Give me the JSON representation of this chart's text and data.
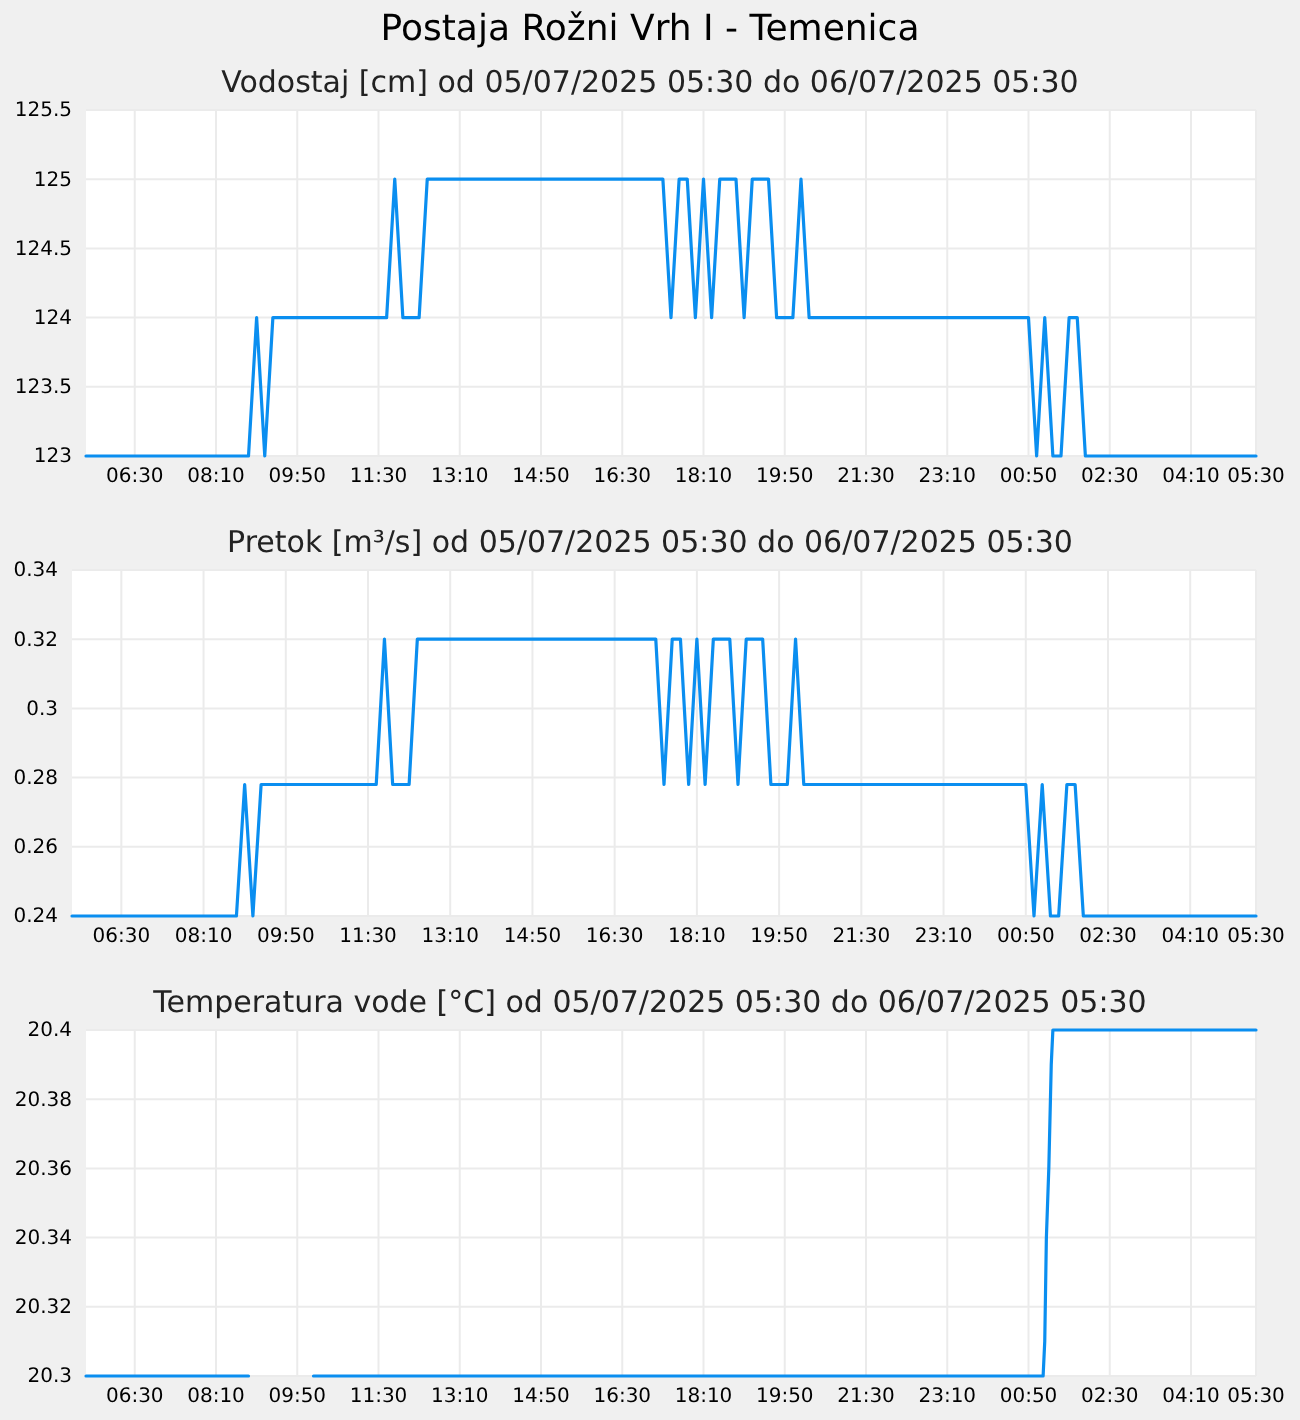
{
  "chart_data": [
    {
      "type": "line",
      "title": "Postaja Rožni Vrh I - Temenica",
      "subtitle": "Vodostaj [cm] od 05/07/2025 05:30 do 06/07/2025 05:30",
      "x": [
        "2025-07-05T05:30",
        "2025-07-05T08:50",
        "2025-07-05T09:00",
        "2025-07-05T09:10",
        "2025-07-05T09:20",
        "2025-07-05T11:40",
        "2025-07-05T11:50",
        "2025-07-05T12:00",
        "2025-07-05T12:20",
        "2025-07-05T12:30",
        "2025-07-05T17:20",
        "2025-07-05T17:30",
        "2025-07-05T17:40",
        "2025-07-05T17:50",
        "2025-07-05T18:00",
        "2025-07-05T18:10",
        "2025-07-05T18:20",
        "2025-07-05T18:30",
        "2025-07-05T18:50",
        "2025-07-05T19:00",
        "2025-07-05T19:10",
        "2025-07-05T19:30",
        "2025-07-05T19:40",
        "2025-07-05T20:00",
        "2025-07-05T20:10",
        "2025-07-05T20:20",
        "2025-07-06T00:50",
        "2025-07-06T01:00",
        "2025-07-06T01:10",
        "2025-07-06T01:20",
        "2025-07-06T01:30",
        "2025-07-06T01:40",
        "2025-07-06T01:50",
        "2025-07-06T02:00",
        "2025-07-06T05:30"
      ],
      "series": [
        {
          "color": "#0a8ef0",
          "values": [
            123,
            123,
            124,
            123,
            124,
            124,
            125,
            124,
            124,
            125,
            125,
            124,
            125,
            125,
            124,
            125,
            124,
            125,
            125,
            124,
            125,
            125,
            124,
            124,
            125,
            124,
            124,
            123,
            124,
            123,
            123,
            124,
            124,
            123,
            123
          ]
        }
      ],
      "xlim": [
        "2025-07-05T05:30",
        "2025-07-06T05:30"
      ],
      "xticks": [
        {
          "value": "2025-07-05T06:30",
          "label": "06:30"
        },
        {
          "value": "2025-07-05T08:10",
          "label": "08:10"
        },
        {
          "value": "2025-07-05T09:50",
          "label": "09:50"
        },
        {
          "value": "2025-07-05T11:30",
          "label": "11:30"
        },
        {
          "value": "2025-07-05T13:10",
          "label": "13:10"
        },
        {
          "value": "2025-07-05T14:50",
          "label": "14:50"
        },
        {
          "value": "2025-07-05T16:30",
          "label": "16:30"
        },
        {
          "value": "2025-07-05T18:10",
          "label": "18:10"
        },
        {
          "value": "2025-07-05T19:50",
          "label": "19:50"
        },
        {
          "value": "2025-07-05T21:30",
          "label": "21:30"
        },
        {
          "value": "2025-07-05T23:10",
          "label": "23:10"
        },
        {
          "value": "2025-07-06T00:50",
          "label": "00:50"
        },
        {
          "value": "2025-07-06T02:30",
          "label": "02:30"
        },
        {
          "value": "2025-07-06T04:10",
          "label": "04:10"
        },
        {
          "value": "2025-07-06T05:30",
          "label": "05:30"
        }
      ],
      "ylim": [
        123,
        125.5
      ],
      "yticks": [
        123,
        123.5,
        124,
        124.5,
        125,
        125.5
      ],
      "grid": true
    },
    {
      "type": "line",
      "title": "Pretok [m³/s] od 05/07/2025 05:30 do 06/07/2025 05:30",
      "x": [
        "2025-07-05T05:30",
        "2025-07-05T08:50",
        "2025-07-05T09:00",
        "2025-07-05T09:10",
        "2025-07-05T09:20",
        "2025-07-05T11:40",
        "2025-07-05T11:50",
        "2025-07-05T12:00",
        "2025-07-05T12:20",
        "2025-07-05T12:30",
        "2025-07-05T17:20",
        "2025-07-05T17:30",
        "2025-07-05T17:40",
        "2025-07-05T17:50",
        "2025-07-05T18:00",
        "2025-07-05T18:10",
        "2025-07-05T18:20",
        "2025-07-05T18:30",
        "2025-07-05T18:50",
        "2025-07-05T19:00",
        "2025-07-05T19:10",
        "2025-07-05T19:30",
        "2025-07-05T19:40",
        "2025-07-05T20:00",
        "2025-07-05T20:10",
        "2025-07-05T20:20",
        "2025-07-06T00:50",
        "2025-07-06T01:00",
        "2025-07-06T01:10",
        "2025-07-06T01:20",
        "2025-07-06T01:30",
        "2025-07-06T01:40",
        "2025-07-06T01:50",
        "2025-07-06T02:00",
        "2025-07-06T05:30"
      ],
      "series": [
        {
          "color": "#0a8ef0",
          "values": [
            0.24,
            0.24,
            0.278,
            0.24,
            0.278,
            0.278,
            0.32,
            0.278,
            0.278,
            0.32,
            0.32,
            0.278,
            0.32,
            0.32,
            0.278,
            0.32,
            0.278,
            0.32,
            0.32,
            0.278,
            0.32,
            0.32,
            0.278,
            0.278,
            0.32,
            0.278,
            0.278,
            0.24,
            0.278,
            0.24,
            0.24,
            0.278,
            0.278,
            0.24,
            0.24
          ]
        }
      ],
      "xlim": [
        "2025-07-05T05:30",
        "2025-07-06T05:30"
      ],
      "xticks": [
        {
          "value": "2025-07-05T06:30",
          "label": "06:30"
        },
        {
          "value": "2025-07-05T08:10",
          "label": "08:10"
        },
        {
          "value": "2025-07-05T09:50",
          "label": "09:50"
        },
        {
          "value": "2025-07-05T11:30",
          "label": "11:30"
        },
        {
          "value": "2025-07-05T13:10",
          "label": "13:10"
        },
        {
          "value": "2025-07-05T14:50",
          "label": "14:50"
        },
        {
          "value": "2025-07-05T16:30",
          "label": "16:30"
        },
        {
          "value": "2025-07-05T18:10",
          "label": "18:10"
        },
        {
          "value": "2025-07-05T19:50",
          "label": "19:50"
        },
        {
          "value": "2025-07-05T21:30",
          "label": "21:30"
        },
        {
          "value": "2025-07-05T23:10",
          "label": "23:10"
        },
        {
          "value": "2025-07-06T00:50",
          "label": "00:50"
        },
        {
          "value": "2025-07-06T02:30",
          "label": "02:30"
        },
        {
          "value": "2025-07-06T04:10",
          "label": "04:10"
        },
        {
          "value": "2025-07-06T05:30",
          "label": "05:30"
        }
      ],
      "ylim": [
        0.24,
        0.34
      ],
      "yticks": [
        0.24,
        0.26,
        0.28,
        0.3,
        0.32,
        0.34
      ],
      "grid": true
    },
    {
      "type": "line",
      "title": "Temperatura vode [°C] od 05/07/2025 05:30 do 06/07/2025 05:30",
      "x": [
        "2025-07-05T05:30",
        "2025-07-05T08:50",
        "2025-07-05T09:00",
        "2025-07-05T10:10",
        "2025-07-06T01:08",
        "2025-07-06T01:10",
        "2025-07-06T01:12",
        "2025-07-06T01:15",
        "2025-07-06T01:18",
        "2025-07-06T01:20",
        "2025-07-06T05:30"
      ],
      "series": [
        {
          "color": "#0a8ef0",
          "values": [
            20.3,
            20.3,
            null,
            20.3,
            20.3,
            20.31,
            20.34,
            20.36,
            20.39,
            20.4,
            20.4
          ]
        }
      ],
      "xlim": [
        "2025-07-05T05:30",
        "2025-07-06T05:30"
      ],
      "xticks": [
        {
          "value": "2025-07-05T06:30",
          "label": "06:30"
        },
        {
          "value": "2025-07-05T08:10",
          "label": "08:10"
        },
        {
          "value": "2025-07-05T09:50",
          "label": "09:50"
        },
        {
          "value": "2025-07-05T11:30",
          "label": "11:30"
        },
        {
          "value": "2025-07-05T13:10",
          "label": "13:10"
        },
        {
          "value": "2025-07-05T14:50",
          "label": "14:50"
        },
        {
          "value": "2025-07-05T16:30",
          "label": "16:30"
        },
        {
          "value": "2025-07-05T18:10",
          "label": "18:10"
        },
        {
          "value": "2025-07-05T19:50",
          "label": "19:50"
        },
        {
          "value": "2025-07-05T21:30",
          "label": "21:30"
        },
        {
          "value": "2025-07-05T23:10",
          "label": "23:10"
        },
        {
          "value": "2025-07-06T00:50",
          "label": "00:50"
        },
        {
          "value": "2025-07-06T02:30",
          "label": "02:30"
        },
        {
          "value": "2025-07-06T04:10",
          "label": "04:10"
        },
        {
          "value": "2025-07-06T05:30",
          "label": "05:30"
        }
      ],
      "ylim": [
        20.3,
        20.4
      ],
      "yticks": [
        20.3,
        20.32,
        20.34,
        20.36,
        20.38,
        20.4
      ],
      "grid": true
    }
  ]
}
